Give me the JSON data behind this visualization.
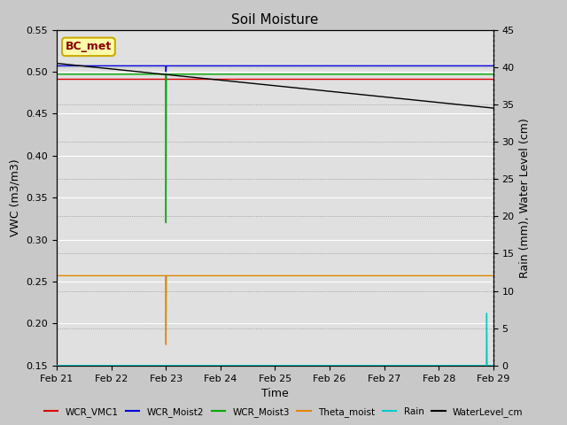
{
  "title": "Soil Moisture",
  "xlabel": "Time",
  "ylabel_left": "VWC (m3/m3)",
  "ylabel_right": "Rain (mm), Water Level (cm)",
  "ylim_left": [
    0.15,
    0.55
  ],
  "ylim_right": [
    0,
    45
  ],
  "yticks_left": [
    0.15,
    0.2,
    0.25,
    0.3,
    0.35,
    0.4,
    0.45,
    0.5,
    0.55
  ],
  "yticks_right": [
    0,
    5,
    10,
    15,
    20,
    25,
    30,
    35,
    40,
    45
  ],
  "xtick_labels": [
    "Feb 21",
    "Feb 22",
    "Feb 23",
    "Feb 24",
    "Feb 25",
    "Feb 26",
    "Feb 27",
    "Feb 28",
    "Feb 29"
  ],
  "annotation_text": "BC_met",
  "annotation_facecolor": "#ffffaa",
  "annotation_edgecolor": "#ccaa00",
  "annotation_textcolor": "#880000",
  "fig_facecolor": "#c8c8c8",
  "plot_facecolor": "#e0e0e0",
  "grid_color": "#ffffff",
  "colors": {
    "WCR_VMC1": "#dd0000",
    "WCR_Moist2": "#0000dd",
    "WCR_Moist3": "#00aa00",
    "Theta_moist": "#dd8800",
    "Rain": "#00cccc",
    "WaterLevel_cm": "#000000"
  }
}
